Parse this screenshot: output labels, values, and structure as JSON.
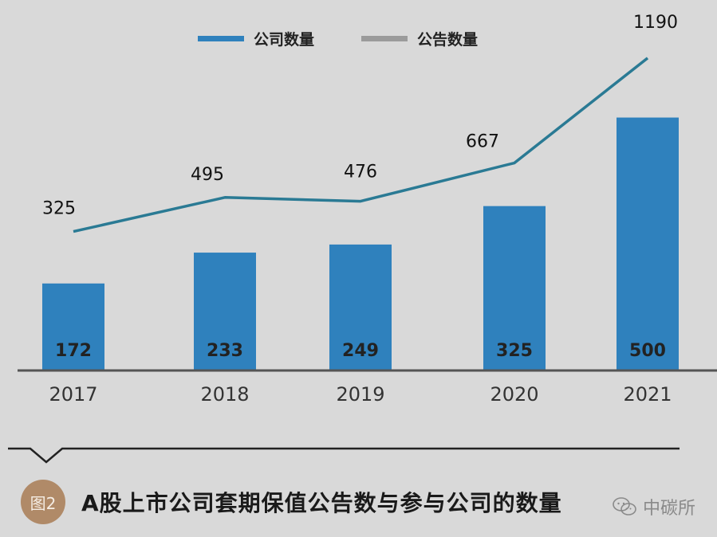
{
  "chart_data": {
    "type": "bar+line",
    "categories": [
      "2017",
      "2018",
      "2019",
      "2020",
      "2021"
    ],
    "series": [
      {
        "name": "公司数量",
        "type": "bar",
        "color": "#2f81bd",
        "values": [
          172,
          233,
          249,
          325,
          500
        ]
      },
      {
        "name": "公告数量",
        "type": "line",
        "color": "#2a7a94",
        "values": [
          325,
          495,
          476,
          667,
          1190
        ]
      }
    ],
    "legend": {
      "placement": "top",
      "items": [
        {
          "label": "公司数量",
          "color": "#2f81bd"
        },
        {
          "label": "公告数量",
          "color": "#9b9b9b"
        }
      ]
    },
    "bar_ylim": [
      0,
      630
    ],
    "line_ylim": [
      -50,
      1400
    ],
    "grid": false
  },
  "caption": {
    "badge": "图2",
    "title": "A股上市公司套期保值公告数与参与公司的数量"
  },
  "watermark": {
    "text": "中碳所",
    "icon": "wechat-icon"
  }
}
